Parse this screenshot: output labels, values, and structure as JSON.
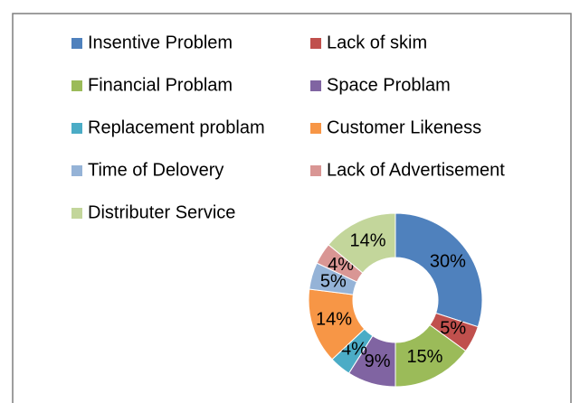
{
  "chart_data": {
    "type": "donut",
    "categories": [
      "Insentive Problem",
      "Lack of skim",
      "Financial Problam",
      "Space Problam",
      "Replacement problam",
      "Customer Likeness",
      "Time of Delovery",
      "Lack of Advertisement",
      "Distributer Service"
    ],
    "values": [
      30,
      5,
      15,
      9,
      4,
      14,
      5,
      4,
      14
    ],
    "value_labels": [
      "30%",
      "5%",
      "15%",
      "9%",
      "4%",
      "14%",
      "5%",
      "4%",
      "14%"
    ],
    "colors": [
      "#4f81bd",
      "#c0504d",
      "#9bbb59",
      "#8064a2",
      "#4bacc6",
      "#f79646",
      "#95b3d7",
      "#d99694",
      "#c3d69b"
    ],
    "legend": "top"
  }
}
